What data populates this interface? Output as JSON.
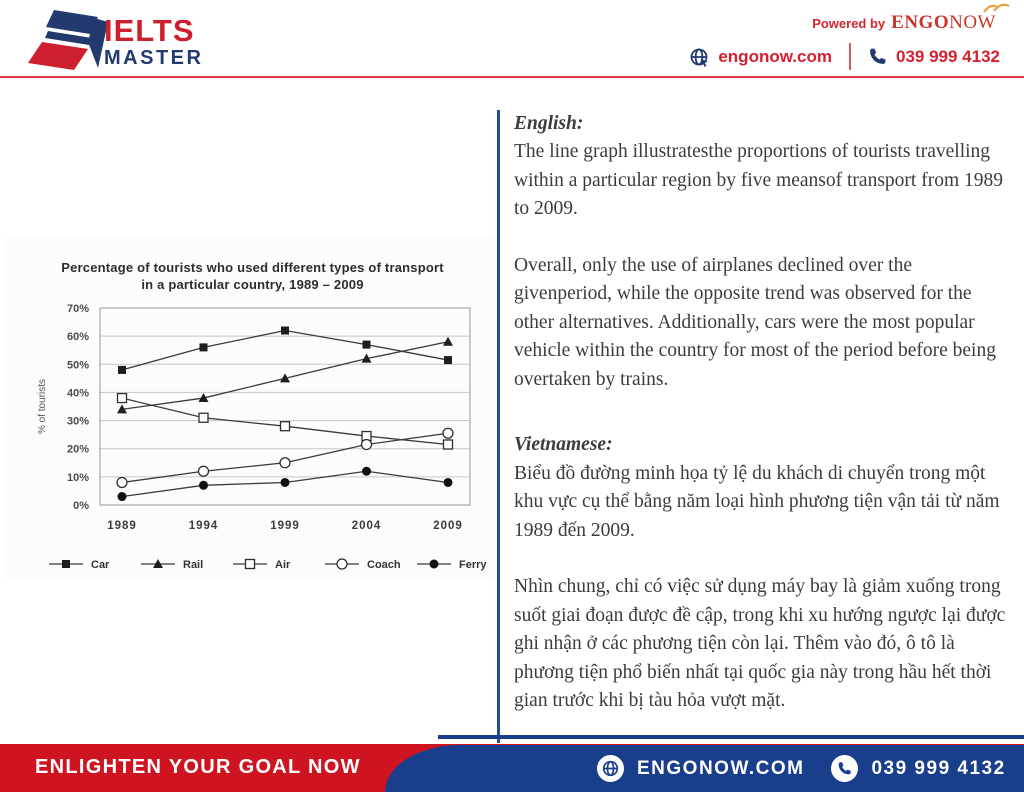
{
  "header": {
    "logo_line1": "IELTS",
    "logo_line2": "MASTER",
    "powered_by": "Powered by",
    "brand_bold": "ENGO",
    "brand_light": "NOW",
    "website": "engonow.com",
    "phone": "039 999 4132"
  },
  "chart_data": {
    "type": "line",
    "title": "Percentage of tourists who used different types of transport in a particular country, 1989 – 2009",
    "title_lines": [
      "Percentage of tourists who used different types of transport",
      "in a particular country, 1989 – 2009"
    ],
    "ylabel": "% of tourists",
    "xlabel": "",
    "categories": [
      "1989",
      "1994",
      "1999",
      "2004",
      "2009"
    ],
    "ylim": [
      0,
      70
    ],
    "ytick_step": 10,
    "ytick_suffix": "%",
    "grid": true,
    "legend_position": "bottom",
    "series": [
      {
        "name": "Car",
        "marker": "square-filled",
        "values": [
          48,
          56,
          62,
          57,
          51.5
        ]
      },
      {
        "name": "Rail",
        "marker": "triangle-filled",
        "values": [
          34,
          38,
          45,
          52,
          58
        ]
      },
      {
        "name": "Air",
        "marker": "square-open",
        "values": [
          38,
          31,
          28,
          24.5,
          21.5
        ]
      },
      {
        "name": "Coach",
        "marker": "circle-open",
        "values": [
          8,
          12,
          15,
          21.5,
          25.5
        ]
      },
      {
        "name": "Ferry",
        "marker": "circle-filled",
        "values": [
          3,
          7,
          8,
          12,
          8
        ]
      }
    ]
  },
  "content": {
    "english": {
      "heading": "English:",
      "p1": "The line graph illustratesthe proportions of tourists travelling within a particular region by five meansof transport from 1989 to 2009.",
      "p2": "Overall, only the use of airplanes declined over the givenperiod, while the opposite trend was observed for the other alternatives. Additionally, cars were the most popular vehicle within the country for most of the period before being overtaken by trains."
    },
    "vietnamese": {
      "heading": "Vietnamese:",
      "p1": "Biểu đồ đường minh họa tỷ lệ du khách di chuyển trong một khu vực cụ thể bằng năm loại hình phương tiện vận tải từ năm 1989 đến 2009.",
      "p2": "Nhìn chung, chỉ có việc sử dụng máy bay là giảm xuống trong suốt giai đoạn được đề cập, trong khi xu hướng ngược lại được ghi nhận ở các phương tiện còn lại. Thêm vào đó, ô tô là phương tiện phổ biến nhất tại quốc gia này trong hầu hết thời gian trước khi bị tàu hỏa vượt mặt."
    }
  },
  "footer": {
    "slogan": "ENLIGHTEN YOUR GOAL NOW",
    "website": "ENGONOW.COM",
    "phone": "039 999 4132"
  },
  "colors": {
    "brand_red": "#CE1F2E",
    "brand_navy": "#233A6F",
    "footer_red": "#CE1420",
    "footer_blue": "#193E8C",
    "accent_line_blue": "#1E4FA0",
    "gold": "#E7A33C"
  }
}
